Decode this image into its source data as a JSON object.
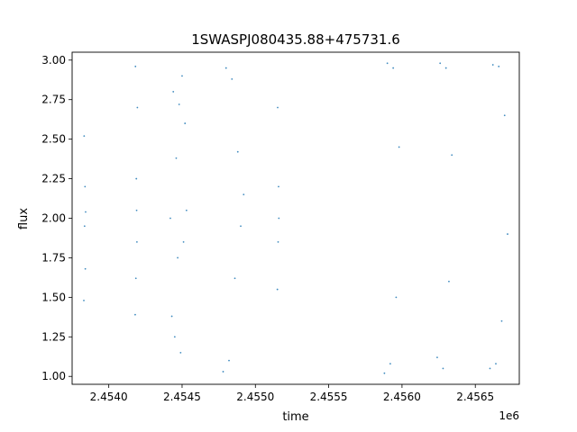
{
  "chart_data": {
    "type": "scatter",
    "title": "1SWASPJ080435.88+475731.6",
    "xlabel": "time",
    "ylabel": "flux",
    "x_offset_label": "1e6",
    "xlim": [
      2453750,
      2456800
    ],
    "ylim": [
      0.95,
      3.05
    ],
    "x_ticks": [
      2454000,
      2454500,
      2455000,
      2455500,
      2456000,
      2456500
    ],
    "x_tick_labels": [
      "2.4540",
      "2.4545",
      "2.4550",
      "2.4555",
      "2.4560",
      "2.4565"
    ],
    "y_ticks": [
      1.0,
      1.25,
      1.5,
      1.75,
      2.0,
      2.25,
      2.5,
      2.75,
      3.0
    ],
    "y_tick_labels": [
      "1.00",
      "1.25",
      "1.50",
      "1.75",
      "2.00",
      "2.25",
      "2.50",
      "2.75",
      "3.00"
    ],
    "marker_color": "#1f77b4",
    "grid": false,
    "series": [
      {
        "x": [
          2453830,
          2453832,
          2453835,
          2453838,
          2453840,
          2453842,
          2454180,
          2454182,
          2454185,
          2454188,
          2454190,
          2454192,
          2454195,
          2454420,
          2454430,
          2454440,
          2454450,
          2454460,
          2454470,
          2454480,
          2454490,
          2454500,
          2454510,
          2454520,
          2454530,
          2454780,
          2454800,
          2454820,
          2454840,
          2454860,
          2454880,
          2454900,
          2454920,
          2455150,
          2455152,
          2455155,
          2455158,
          2455160,
          2455880,
          2455900,
          2455920,
          2455940,
          2455960,
          2455980,
          2456240,
          2456260,
          2456280,
          2456300,
          2456320,
          2456340,
          2456600,
          2456620,
          2456640,
          2456660,
          2456680,
          2456700,
          2456720
        ],
        "y": [
          1.48,
          2.52,
          1.95,
          2.2,
          1.68,
          2.04,
          1.39,
          2.96,
          1.62,
          2.25,
          2.05,
          1.85,
          2.7,
          2.0,
          1.38,
          2.8,
          1.25,
          2.38,
          1.75,
          2.72,
          1.15,
          2.9,
          1.85,
          2.6,
          2.05,
          1.03,
          2.95,
          1.1,
          2.88,
          1.62,
          2.42,
          1.95,
          2.15,
          1.55,
          2.7,
          1.85,
          2.2,
          2.0,
          1.02,
          2.98,
          1.08,
          2.95,
          1.5,
          2.45,
          1.12,
          2.98,
          1.05,
          2.95,
          1.6,
          2.4,
          1.05,
          2.97,
          1.08,
          2.96,
          1.35,
          2.65,
          1.9
        ]
      }
    ]
  }
}
